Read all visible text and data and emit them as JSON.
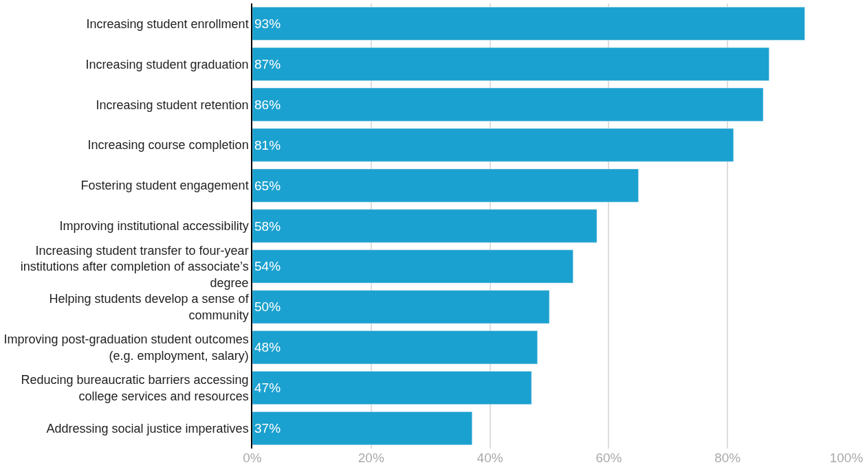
{
  "chart_data": {
    "type": "bar",
    "orientation": "horizontal",
    "categories": [
      "Increasing student enrollment",
      "Increasing student graduation",
      "Increasing student retention",
      "Increasing course completion",
      "Fostering student engagement",
      "Improving institutional accessibility",
      "Increasing student transfer to four-year institutions after completion of associate’s degree",
      "Helping students develop a sense of community",
      "Improving post-graduation student outcomes (e.g. employment, salary)",
      "Reducing bureaucratic barriers accessing college services and resources",
      "Addressing social justice imperatives"
    ],
    "values": [
      93,
      87,
      86,
      81,
      65,
      58,
      54,
      50,
      48,
      47,
      37
    ],
    "value_labels": [
      "93%",
      "87%",
      "86%",
      "81%",
      "65%",
      "58%",
      "54%",
      "50%",
      "48%",
      "47%",
      "37%"
    ],
    "color": "#1ba1cf",
    "xlim": [
      0,
      100
    ],
    "xticks": [
      {
        "value": 0,
        "label": "0%"
      },
      {
        "value": 20,
        "label": "20%"
      },
      {
        "value": 40,
        "label": "40%"
      },
      {
        "value": 60,
        "label": "60%"
      },
      {
        "value": 80,
        "label": "80%"
      },
      {
        "value": 100,
        "label": "100%"
      }
    ],
    "grid": "x"
  }
}
